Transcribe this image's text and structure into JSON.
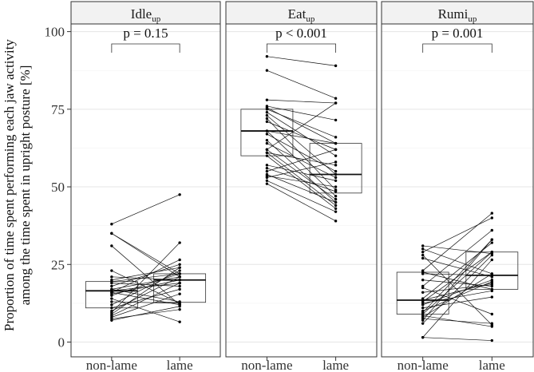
{
  "chart_data": {
    "type": "boxplot-paired",
    "ylabel_lines": [
      "Proportion of time spent performing each jaw activity",
      "among the time spent in upright posture [%]"
    ],
    "ylim": [
      -5,
      105
    ],
    "yticks": [
      0,
      25,
      50,
      75,
      100
    ],
    "ytick_labels": [
      "0",
      "25",
      "50",
      "75",
      "100"
    ],
    "categories": [
      "non-lame",
      "lame"
    ],
    "grid": true,
    "panels": [
      {
        "title_main": "Idle",
        "title_sub": "up",
        "p_label": "p = 0.15",
        "boxes": [
          {
            "q1": 11,
            "median": 16.5,
            "q3": 19.5
          },
          {
            "q1": 12.8,
            "median": 20,
            "q3": 22
          }
        ],
        "pairs": [
          [
            38,
            47.5
          ],
          [
            35,
            21
          ],
          [
            35,
            22
          ],
          [
            31,
            12
          ],
          [
            23,
            12.5
          ],
          [
            21,
            20
          ],
          [
            20,
            24
          ],
          [
            19.5,
            22
          ],
          [
            19,
            18
          ],
          [
            18,
            25
          ],
          [
            17,
            21
          ],
          [
            17,
            13
          ],
          [
            16.5,
            19
          ],
          [
            16,
            26.5
          ],
          [
            16,
            12
          ],
          [
            15.5,
            20
          ],
          [
            15,
            22
          ],
          [
            14,
            6.5
          ],
          [
            12,
            23
          ],
          [
            11,
            17
          ],
          [
            10,
            21
          ],
          [
            9.5,
            32
          ],
          [
            9,
            24
          ],
          [
            8.5,
            19
          ],
          [
            8,
            15.5
          ],
          [
            7.5,
            10.5
          ],
          [
            7,
            11.5
          ],
          [
            13,
            12.5
          ]
        ]
      },
      {
        "title_main": "Eat",
        "title_sub": "up",
        "p_label": "p < 0.001",
        "boxes": [
          {
            "q1": 60,
            "median": 68,
            "q3": 75
          },
          {
            "q1": 48,
            "median": 54,
            "q3": 64
          }
        ],
        "pairs": [
          [
            92,
            89
          ],
          [
            87.5,
            78.5
          ],
          [
            78,
            77
          ],
          [
            76,
            71.5
          ],
          [
            75.5,
            64
          ],
          [
            75,
            66
          ],
          [
            74,
            60
          ],
          [
            73,
            54
          ],
          [
            72,
            49
          ],
          [
            71,
            62
          ],
          [
            68,
            64
          ],
          [
            68,
            47
          ],
          [
            67,
            55
          ],
          [
            65,
            45
          ],
          [
            64,
            53
          ],
          [
            62,
            46
          ],
          [
            61,
            57
          ],
          [
            61,
            44
          ],
          [
            60,
            43
          ],
          [
            57,
            52
          ],
          [
            56,
            48.5
          ],
          [
            54,
            45
          ],
          [
            53,
            58
          ],
          [
            52,
            42
          ],
          [
            51,
            39
          ],
          [
            62,
            77
          ],
          [
            53.5,
            50
          ],
          [
            55,
            62
          ]
        ]
      },
      {
        "title_main": "Rumi",
        "title_sub": "up",
        "p_label": "p = 0.001",
        "boxes": [
          {
            "q1": 9,
            "median": 13.5,
            "q3": 22.5
          },
          {
            "q1": 17,
            "median": 21.5,
            "q3": 29
          }
        ],
        "pairs": [
          [
            31,
            28.5
          ],
          [
            30,
            22
          ],
          [
            29,
            40
          ],
          [
            28,
            5.5
          ],
          [
            27,
            21
          ],
          [
            23,
            41.5
          ],
          [
            22.5,
            17
          ],
          [
            20,
            18
          ],
          [
            18,
            36
          ],
          [
            17.5,
            9
          ],
          [
            14,
            32
          ],
          [
            13.5,
            19
          ],
          [
            13,
            29
          ],
          [
            12.5,
            16.5
          ],
          [
            11,
            14.5
          ],
          [
            10,
            19.5
          ],
          [
            9.5,
            33
          ],
          [
            8.5,
            5
          ],
          [
            8,
            22
          ],
          [
            7.5,
            6
          ],
          [
            6,
            28
          ],
          [
            1.5,
            0.5
          ],
          [
            1.5,
            26.5
          ],
          [
            12,
            20
          ],
          [
            9,
            29
          ],
          [
            7,
            33
          ],
          [
            22,
            21.5
          ],
          [
            16,
            18.5
          ]
        ]
      }
    ]
  }
}
